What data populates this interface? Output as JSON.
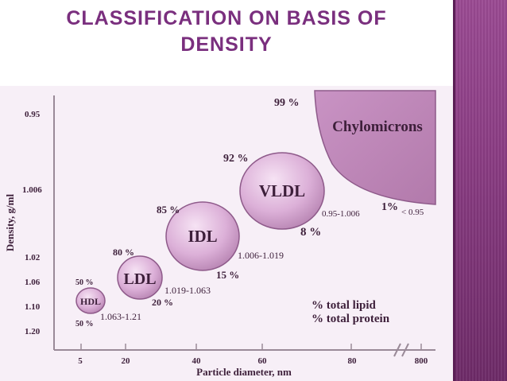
{
  "title": {
    "line1": "CLASSIFICATION ON BASIS OF",
    "line2": "DENSITY"
  },
  "chart_data": {
    "type": "scatter",
    "title": "CLASSIFICATION ON BASIS OF DENSITY",
    "xlabel": "Particle diameter, nm",
    "ylabel": "Density, g/ml",
    "x_ticks": [
      "5",
      "20",
      "40",
      "60",
      "80",
      "800"
    ],
    "y_ticks": [
      "0.95",
      "1.006",
      "1.02",
      "1.06",
      "1.10",
      "1.20"
    ],
    "lipoproteins": [
      {
        "name": "HDL",
        "density_range": "1.063-1.21",
        "percent_lipid": "50 %",
        "percent_protein": "50 %"
      },
      {
        "name": "LDL",
        "density_range": "1.019-1.063",
        "percent_lipid": "80 %",
        "percent_protein": "20 %"
      },
      {
        "name": "IDL",
        "density_range": "1.006-1.019",
        "percent_lipid": "85 %",
        "percent_protein": "15 %"
      },
      {
        "name": "VLDL",
        "density_range": "0.95-1.006",
        "percent_lipid": "92 %",
        "percent_protein": "8 %"
      },
      {
        "name": "Chylomicrons",
        "density_range": "< 0.95",
        "percent_lipid": "99 %",
        "percent_protein": "1%"
      }
    ],
    "legend": [
      "% total lipid",
      "% total protein"
    ]
  },
  "colors": {
    "title": "#7a2f7e",
    "particle": "#d9a9d5",
    "particle_edge": "#8e5a8a",
    "text": "#3d1f3a",
    "axis": "#9a8a98"
  }
}
